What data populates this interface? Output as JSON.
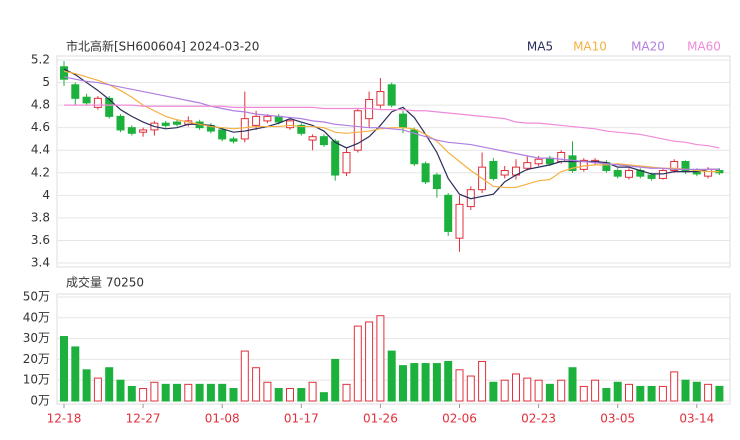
{
  "chart_data": [
    {
      "type": "candlestick",
      "title": "市北高新[SH600604] 2024-03-20",
      "open": [
        5.14,
        4.98,
        4.87,
        4.78,
        4.86,
        4.7,
        4.6,
        4.56,
        4.58,
        4.64,
        4.65,
        4.63,
        4.65,
        4.62,
        4.58,
        4.5,
        4.5,
        4.62,
        4.66,
        4.7,
        4.6,
        4.62,
        4.49,
        4.52,
        4.48,
        4.2,
        4.4,
        4.68,
        4.8,
        4.98,
        4.72,
        4.58,
        4.28,
        4.18,
        4.0,
        3.62,
        3.9,
        4.05,
        4.3,
        4.18,
        4.18,
        4.24,
        4.28,
        4.33,
        4.3,
        4.35,
        4.23,
        4.29,
        4.29,
        4.22,
        4.16,
        4.22,
        4.18,
        4.15,
        4.22,
        4.3,
        4.22,
        4.17,
        4.22
      ],
      "high": [
        5.19,
        5.0,
        4.9,
        4.88,
        4.88,
        4.72,
        4.62,
        4.6,
        4.66,
        4.66,
        4.67,
        4.7,
        4.67,
        4.64,
        4.6,
        4.52,
        4.92,
        4.75,
        4.72,
        4.72,
        4.68,
        4.64,
        4.54,
        4.54,
        4.5,
        4.42,
        4.77,
        4.92,
        5.04,
        5.0,
        4.75,
        4.6,
        4.3,
        4.2,
        4.02,
        4.0,
        4.08,
        4.38,
        4.33,
        4.26,
        4.32,
        4.35,
        4.35,
        4.35,
        4.4,
        4.48,
        4.33,
        4.33,
        4.31,
        4.24,
        4.24,
        4.24,
        4.2,
        4.24,
        4.32,
        4.31,
        4.24,
        4.25,
        4.24
      ],
      "low": [
        4.97,
        4.8,
        4.8,
        4.76,
        4.68,
        4.56,
        4.53,
        4.52,
        4.53,
        4.6,
        4.61,
        4.61,
        4.58,
        4.55,
        4.48,
        4.46,
        4.47,
        4.58,
        4.64,
        4.63,
        4.58,
        4.53,
        4.4,
        4.43,
        4.13,
        4.17,
        4.38,
        4.6,
        4.77,
        4.78,
        4.55,
        4.26,
        4.1,
        3.98,
        3.64,
        3.5,
        3.87,
        4.02,
        4.13,
        4.15,
        4.14,
        4.22,
        4.26,
        4.26,
        4.28,
        4.2,
        4.21,
        4.27,
        4.2,
        4.15,
        4.14,
        4.15,
        4.13,
        4.14,
        4.2,
        4.19,
        4.17,
        4.15,
        4.18
      ],
      "close": [
        5.03,
        4.86,
        4.82,
        4.86,
        4.7,
        4.58,
        4.55,
        4.58,
        4.64,
        4.62,
        4.63,
        4.66,
        4.6,
        4.57,
        4.5,
        4.48,
        4.68,
        4.7,
        4.7,
        4.65,
        4.66,
        4.55,
        4.52,
        4.45,
        4.18,
        4.38,
        4.75,
        4.85,
        4.92,
        4.8,
        4.6,
        4.28,
        4.12,
        4.06,
        3.68,
        3.92,
        4.05,
        4.25,
        4.15,
        4.22,
        4.25,
        4.29,
        4.32,
        4.28,
        4.38,
        4.22,
        4.31,
        4.31,
        4.22,
        4.17,
        4.22,
        4.17,
        4.15,
        4.22,
        4.3,
        4.21,
        4.19,
        4.23,
        4.2
      ],
      "up_color": "#e0303c",
      "down_color": "#1cb03c",
      "series": [
        {
          "name": "MA5",
          "color": "#2a2d5c",
          "values": [
            5.12,
            5.07,
            5.0,
            4.93,
            4.85,
            4.76,
            4.7,
            4.65,
            4.61,
            4.59,
            4.6,
            4.63,
            4.63,
            4.62,
            4.59,
            4.56,
            4.57,
            4.59,
            4.61,
            4.64,
            4.68,
            4.65,
            4.62,
            4.57,
            4.47,
            4.42,
            4.46,
            4.52,
            4.62,
            4.74,
            4.78,
            4.69,
            4.54,
            4.38,
            4.15,
            4.01,
            3.97,
            3.99,
            4.01,
            4.12,
            4.18,
            4.23,
            4.25,
            4.27,
            4.3,
            4.3,
            4.3,
            4.3,
            4.29,
            4.25,
            4.25,
            4.22,
            4.19,
            4.19,
            4.21,
            4.21,
            4.21,
            4.23,
            4.23
          ]
        },
        {
          "name": "MA10",
          "color": "#f5b142",
          "values": [
            5.1,
            5.08,
            5.05,
            5.02,
            4.98,
            4.93,
            4.87,
            4.8,
            4.75,
            4.7,
            4.67,
            4.65,
            4.63,
            4.61,
            4.6,
            4.59,
            4.6,
            4.61,
            4.61,
            4.61,
            4.62,
            4.61,
            4.61,
            4.6,
            4.56,
            4.55,
            4.56,
            4.57,
            4.59,
            4.6,
            4.6,
            4.59,
            4.54,
            4.48,
            4.38,
            4.3,
            4.22,
            4.15,
            4.08,
            4.07,
            4.07,
            4.1,
            4.13,
            4.14,
            4.21,
            4.24,
            4.26,
            4.27,
            4.27,
            4.28,
            4.27,
            4.26,
            4.25,
            4.24,
            4.24,
            4.23,
            4.22,
            4.21,
            4.21
          ]
        },
        {
          "name": "MA20",
          "color": "#b07ee0",
          "values": [
            5.05,
            5.03,
            5.01,
            5.0,
            4.98,
            4.96,
            4.94,
            4.92,
            4.9,
            4.88,
            4.86,
            4.84,
            4.82,
            4.79,
            4.77,
            4.75,
            4.74,
            4.72,
            4.71,
            4.7,
            4.69,
            4.68,
            4.66,
            4.65,
            4.63,
            4.62,
            4.61,
            4.6,
            4.6,
            4.59,
            4.58,
            4.55,
            4.52,
            4.49,
            4.47,
            4.46,
            4.45,
            4.43,
            4.41,
            4.39,
            4.37,
            4.35,
            4.33,
            4.33,
            4.32,
            4.31,
            4.3,
            4.29,
            4.28,
            4.27,
            4.26,
            4.25,
            4.24,
            4.24,
            4.23,
            4.23,
            4.23,
            4.23,
            4.23
          ]
        },
        {
          "name": "MA60",
          "color": "#f08ad8",
          "values": [
            4.8,
            4.8,
            4.8,
            4.8,
            4.8,
            4.8,
            4.8,
            4.79,
            4.79,
            4.79,
            4.79,
            4.79,
            4.79,
            4.79,
            4.79,
            4.78,
            4.78,
            4.78,
            4.78,
            4.78,
            4.78,
            4.78,
            4.78,
            4.77,
            4.77,
            4.77,
            4.77,
            4.77,
            4.76,
            4.76,
            4.76,
            4.75,
            4.75,
            4.74,
            4.73,
            4.72,
            4.71,
            4.7,
            4.69,
            4.68,
            4.65,
            4.64,
            4.64,
            4.63,
            4.62,
            4.61,
            4.6,
            4.59,
            4.57,
            4.56,
            4.55,
            4.54,
            4.52,
            4.5,
            4.48,
            4.47,
            4.45,
            4.44,
            4.42
          ]
        }
      ],
      "ylim": [
        3.4,
        5.2
      ],
      "yticks": [
        3.4,
        3.6,
        3.8,
        4,
        4.2,
        4.4,
        4.6,
        4.8,
        5,
        5.2
      ],
      "grid": true
    },
    {
      "type": "bar",
      "title": "成交量 70250",
      "categories": [
        "12-18",
        null,
        null,
        null,
        null,
        null,
        null,
        "12-27",
        null,
        null,
        null,
        null,
        null,
        null,
        "01-08",
        null,
        null,
        null,
        null,
        null,
        null,
        "01-17",
        null,
        null,
        null,
        null,
        null,
        null,
        "01-26",
        null,
        null,
        null,
        null,
        null,
        null,
        "02-06",
        null,
        null,
        null,
        null,
        null,
        null,
        "02-23",
        null,
        null,
        null,
        null,
        null,
        null,
        "03-05",
        null,
        null,
        null,
        null,
        null,
        null,
        "03-14",
        null,
        null
      ],
      "values": [
        31,
        26,
        15,
        11,
        16,
        10,
        7,
        6,
        9,
        8,
        8,
        8,
        8,
        8,
        8,
        6,
        24,
        16,
        9,
        6,
        6,
        6,
        9,
        4,
        20,
        8,
        36,
        38,
        41,
        24,
        17,
        18,
        18,
        18,
        19,
        15,
        12,
        19,
        9,
        10,
        13,
        11,
        10,
        8,
        10,
        16,
        7,
        10,
        6,
        9,
        8,
        7,
        7,
        7,
        14,
        10,
        9,
        8,
        7.025
      ],
      "ylim": [
        0,
        50
      ],
      "yticks": [
        {
          "value": 0,
          "label": "0万"
        },
        {
          "value": 10,
          "label": "10万"
        },
        {
          "value": 20,
          "label": "20万"
        },
        {
          "value": 30,
          "label": "30万"
        },
        {
          "value": 40,
          "label": "40万"
        },
        {
          "value": 50,
          "label": "50万"
        }
      ],
      "grid": true
    }
  ]
}
